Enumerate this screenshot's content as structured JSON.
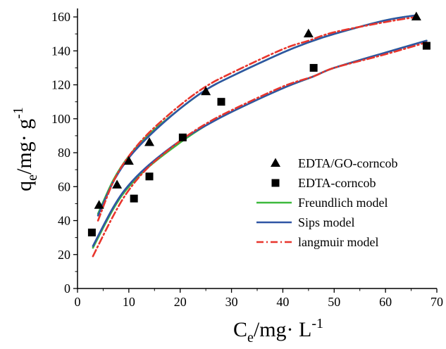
{
  "chart_data": {
    "type": "scatter",
    "xlabel": {
      "main": "C",
      "sub": "e",
      "rest": "/mg· L",
      "sup": "-1"
    },
    "ylabel": {
      "main": "q",
      "sub": "e",
      "rest": "/mg· g",
      "sup": "-1"
    },
    "xlim": [
      0,
      70
    ],
    "ylim": [
      0,
      165
    ],
    "xticks": [
      0,
      10,
      20,
      30,
      40,
      50,
      60,
      70
    ],
    "yticks": [
      0,
      20,
      40,
      60,
      80,
      100,
      120,
      140,
      160
    ],
    "xtick_labels": [
      "0",
      "10",
      "20",
      "30",
      "40",
      "50",
      "60",
      "70"
    ],
    "ytick_labels": [
      "0",
      "20",
      "40",
      "60",
      "80",
      "100",
      "120",
      "140",
      "160"
    ],
    "grid": false,
    "legend_position": "right-center",
    "series": [
      {
        "name": "EDTA/GO-corncob",
        "kind": "points",
        "marker": "triangle",
        "color": "#000000",
        "x": [
          4.2,
          7.7,
          10.0,
          14.0,
          25.0,
          45.0,
          66.0
        ],
        "y": [
          49,
          61,
          75,
          86,
          116,
          150,
          160
        ]
      },
      {
        "name": "EDTA-corncob",
        "kind": "points",
        "marker": "square",
        "color": "#000000",
        "x": [
          2.8,
          11.0,
          14.0,
          20.5,
          28.0,
          46.0,
          68.0
        ],
        "y": [
          33,
          53,
          66,
          89,
          110,
          130,
          143
        ]
      }
    ],
    "fits": [
      {
        "name": "Freundlich model",
        "style": "solid",
        "color": "#3cb93c",
        "curves": [
          {
            "x": [
              4,
              7,
              10,
              14,
              20,
              25,
              30,
              40,
              45,
              50,
              60,
              66
            ],
            "y": [
              44,
              64,
              78,
              91,
              106,
              117,
              125,
              139,
              145,
              150,
              158,
              161
            ]
          },
          {
            "x": [
              3,
              7,
              10,
              14,
              20,
              25,
              30,
              40,
              46,
              50,
              60,
              68
            ],
            "y": [
              24,
              47,
              60,
              72,
              86,
              96,
              104,
              118,
              125,
              130,
              139,
              146
            ]
          }
        ]
      },
      {
        "name": "Sips model",
        "style": "solid",
        "color": "#2f55a4",
        "curves": [
          {
            "x": [
              4,
              7,
              10,
              14,
              20,
              25,
              30,
              40,
              45,
              50,
              60,
              66
            ],
            "y": [
              43,
              63,
              77,
              90,
              106,
              117,
              125,
              139,
              145,
              150,
              158,
              161
            ]
          },
          {
            "x": [
              3,
              7,
              10,
              14,
              20,
              25,
              30,
              40,
              46,
              50,
              60,
              68
            ],
            "y": [
              25,
              48,
              61,
              73,
              87,
              96,
              104,
              118,
              125,
              130,
              139,
              146
            ]
          }
        ]
      },
      {
        "name": "langmuir model",
        "style": "dashdot",
        "color": "#e8352c",
        "curves": [
          {
            "x": [
              4,
              7,
              10,
              14,
              20,
              25,
              30,
              40,
              45,
              50,
              60,
              66
            ],
            "y": [
              40,
              63,
              78,
              92,
              108,
              119,
              127,
              141,
              146,
              151,
              157,
              160
            ]
          },
          {
            "x": [
              3,
              7,
              10,
              14,
              20,
              25,
              30,
              40,
              46,
              50,
              60,
              68
            ],
            "y": [
              19,
              43,
              58,
              72,
              87,
              97,
              105,
              119,
              125,
              130,
              138,
              145
            ]
          }
        ]
      }
    ]
  }
}
